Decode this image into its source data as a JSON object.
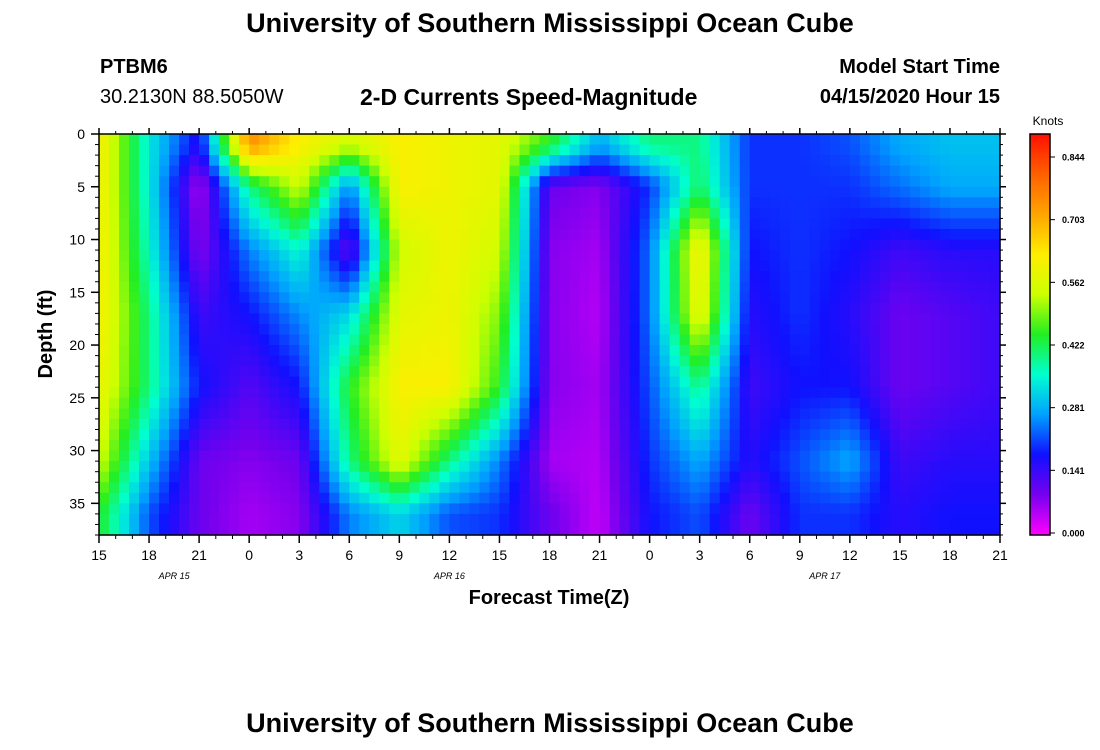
{
  "header": {
    "title": "University of Southern Mississippi Ocean Cube",
    "footer_title": "University of Southern Mississippi Ocean Cube",
    "station_id": "PTBM6",
    "station_coords": "30.2130N 88.5050W",
    "model_start_label": "Model Start Time",
    "model_start_value": "04/15/2020 Hour 15"
  },
  "chart_data": {
    "type": "heatmap",
    "title": "2-D Currents Speed-Magnitude",
    "xlabel": "Forecast Time(Z)",
    "ylabel": "Depth (ft)",
    "x_start_label_hour": 15,
    "x_range_hours": [
      0,
      54
    ],
    "y_range_ft": [
      0,
      38
    ],
    "y_inverted": true,
    "xticks": [
      "15",
      "18",
      "21",
      "0",
      "3",
      "6",
      "9",
      "12",
      "15",
      "18",
      "21",
      "0",
      "3",
      "6",
      "9",
      "12",
      "15",
      "18",
      "21"
    ],
    "yticks": [
      "0",
      "5",
      "10",
      "15",
      "20",
      "25",
      "30",
      "35"
    ],
    "date_labels": [
      {
        "text": "APR 15",
        "hour_index": 4.5
      },
      {
        "text": "APR 16",
        "hour_index": 21
      },
      {
        "text": "APR 17",
        "hour_index": 43.5
      }
    ],
    "colorbar": {
      "unit": "Knots",
      "range": [
        0,
        0.9
      ],
      "ticks": [
        "0.844",
        "0.703",
        "0.562",
        "0.422",
        "0.281",
        "0.141",
        "0.000"
      ],
      "colors": [
        "#ff00ff",
        "#7700ee",
        "#1010ff",
        "#00a0ff",
        "#00ffd0",
        "#22ee22",
        "#ccff00",
        "#ffee00",
        "#ffa500",
        "#ff6000",
        "#ff1000"
      ]
    },
    "speed_profile": {
      "description_hours": "rows are depth bands top to bottom (0-2,2-8,8-14,14-20,20-28,28-34,34-38 ft); columns are forecast hours 0..54 sampled every 3 h",
      "depth_bands_ft": [
        1,
        5,
        11,
        17,
        24,
        31,
        36
      ],
      "hours": [
        0,
        3,
        6,
        9,
        12,
        15,
        18,
        21,
        24,
        27,
        30,
        33,
        36,
        39,
        42,
        45,
        48,
        51,
        54
      ],
      "values": [
        [
          0.62,
          0.34,
          0.16,
          0.75,
          0.62,
          0.55,
          0.62,
          0.6,
          0.58,
          0.45,
          0.28,
          0.4,
          0.4,
          0.2,
          0.2,
          0.22,
          0.28,
          0.3,
          0.3
        ],
        [
          0.62,
          0.34,
          0.05,
          0.4,
          0.55,
          0.25,
          0.62,
          0.6,
          0.58,
          0.1,
          0.08,
          0.2,
          0.42,
          0.2,
          0.2,
          0.2,
          0.24,
          0.28,
          0.28
        ],
        [
          0.62,
          0.36,
          0.08,
          0.25,
          0.36,
          0.1,
          0.55,
          0.6,
          0.55,
          0.08,
          0.06,
          0.24,
          0.62,
          0.18,
          0.2,
          0.18,
          0.14,
          0.16,
          0.16
        ],
        [
          0.62,
          0.4,
          0.14,
          0.18,
          0.26,
          0.32,
          0.58,
          0.6,
          0.5,
          0.08,
          0.05,
          0.24,
          0.6,
          0.16,
          0.2,
          0.16,
          0.1,
          0.12,
          0.14
        ],
        [
          0.6,
          0.4,
          0.18,
          0.12,
          0.18,
          0.45,
          0.62,
          0.62,
          0.45,
          0.08,
          0.06,
          0.22,
          0.4,
          0.14,
          0.18,
          0.18,
          0.1,
          0.12,
          0.14
        ],
        [
          0.55,
          0.3,
          0.1,
          0.08,
          0.1,
          0.4,
          0.58,
          0.4,
          0.25,
          0.06,
          0.05,
          0.2,
          0.28,
          0.16,
          0.22,
          0.28,
          0.14,
          0.16,
          0.16
        ],
        [
          0.45,
          0.22,
          0.1,
          0.06,
          0.08,
          0.25,
          0.32,
          0.22,
          0.2,
          0.1,
          0.04,
          0.18,
          0.22,
          0.1,
          0.2,
          0.2,
          0.16,
          0.18,
          0.18
        ]
      ]
    }
  }
}
